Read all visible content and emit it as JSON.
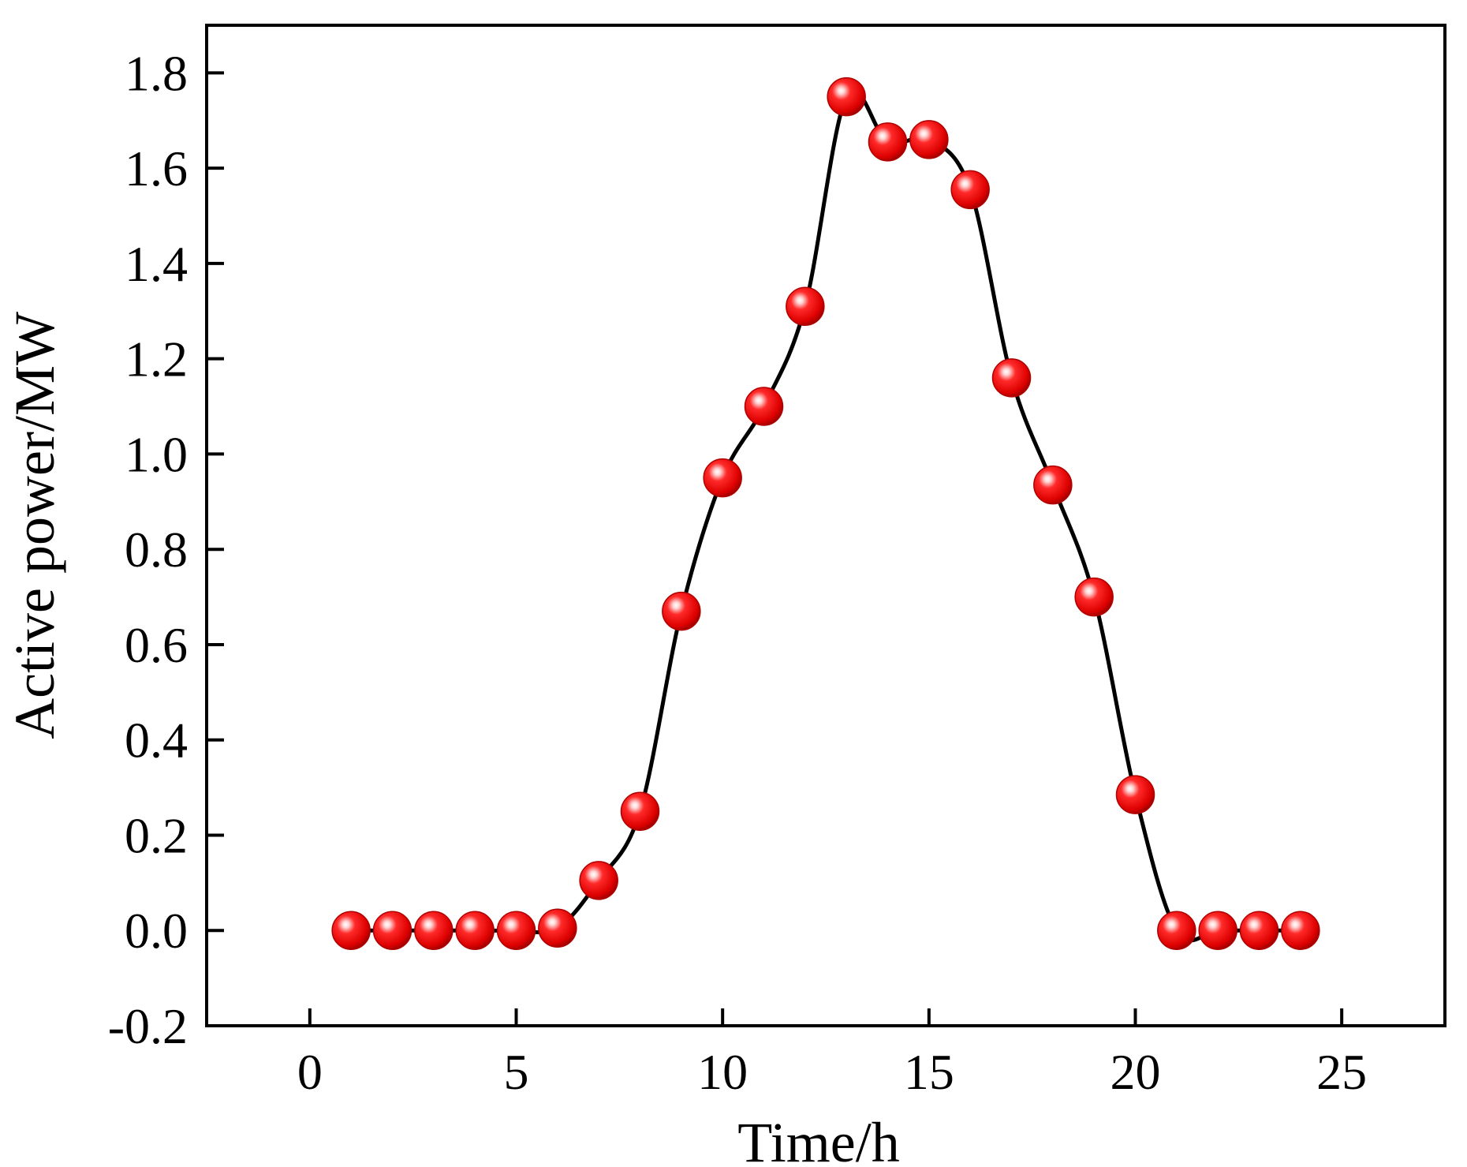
{
  "chart_data": {
    "type": "line",
    "title": "",
    "xlabel": "Time/h",
    "ylabel": "Active power/MW",
    "xlim": [
      -2.5,
      27.5
    ],
    "ylim": [
      -0.2,
      1.9
    ],
    "xticks": [
      0,
      5,
      10,
      15,
      20,
      25
    ],
    "xtick_labels": [
      "0",
      "5",
      "10",
      "15",
      "20",
      "25"
    ],
    "yticks": [
      -0.2,
      0.0,
      0.2,
      0.4,
      0.6,
      0.8,
      1.0,
      1.2,
      1.4,
      1.6,
      1.8
    ],
    "ytick_labels": [
      "-0.2",
      "0.0",
      "0.2",
      "0.4",
      "0.6",
      "0.8",
      "1.0",
      "1.2",
      "1.4",
      "1.6",
      "1.8"
    ],
    "grid": false,
    "legend": "none",
    "series": [
      {
        "x": [
          1,
          2,
          3,
          4,
          5,
          6,
          7,
          8,
          9,
          10,
          11,
          12,
          13,
          14,
          15,
          16,
          17,
          18,
          19,
          20,
          21,
          22,
          23,
          24
        ],
        "values": [
          0.0,
          0.0,
          0.0,
          0.0,
          0.0,
          0.005,
          0.105,
          0.25,
          0.67,
          0.95,
          1.1,
          1.31,
          1.75,
          1.655,
          1.66,
          1.555,
          1.16,
          0.935,
          0.7,
          0.285,
          0.0,
          0.0,
          0.0,
          0.0
        ],
        "line_color": "#000000",
        "marker_color": "#ee0000"
      }
    ]
  }
}
